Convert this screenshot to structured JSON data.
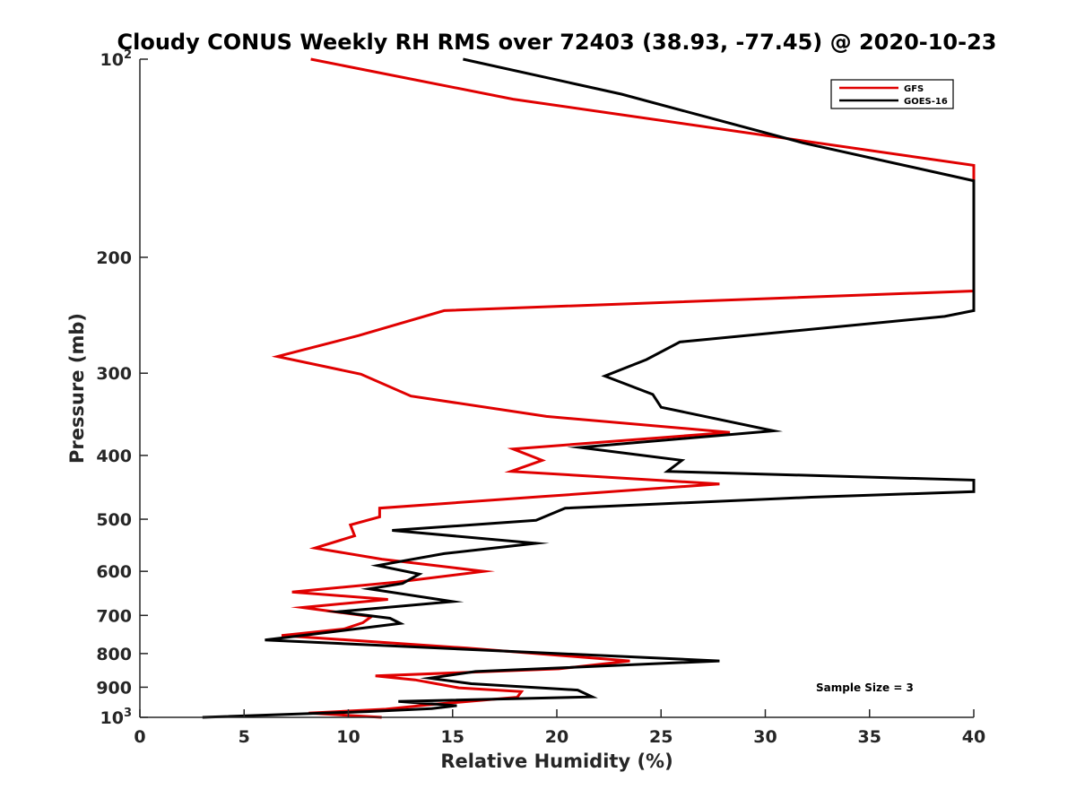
{
  "chart_data": {
    "type": "line",
    "title": "Cloudy CONUS Weekly RH RMS over 72403 (38.93, -77.45) @ 2020-10-23",
    "xlabel": "Relative Humidity (%)",
    "ylabel": "Pressure (mb)",
    "xlim": [
      0,
      40
    ],
    "ylim": [
      100,
      1000
    ],
    "y_scale": "log",
    "y_reversed": true,
    "x_ticks": [
      "0",
      "5",
      "10",
      "15",
      "20",
      "25",
      "30",
      "35",
      "40"
    ],
    "y_ticks": [
      {
        "value": 100,
        "base": "10",
        "exp": "2"
      },
      {
        "value": 200,
        "label": "200"
      },
      {
        "value": 300,
        "label": "300"
      },
      {
        "value": 400,
        "label": "400"
      },
      {
        "value": 500,
        "label": "500"
      },
      {
        "value": 600,
        "label": "600"
      },
      {
        "value": 700,
        "label": "700"
      },
      {
        "value": 800,
        "label": "800"
      },
      {
        "value": 900,
        "label": "900"
      },
      {
        "value": 1000,
        "base": "10",
        "exp": "3"
      }
    ],
    "legend_position": "top-right",
    "annotation": "Sample Size = 3",
    "series": [
      {
        "name": "GFS",
        "color": "#e00000",
        "points": [
          [
            8.2,
            100
          ],
          [
            17.9,
            115
          ],
          [
            40,
            145
          ],
          [
            40,
            225
          ],
          [
            14.6,
            241
          ],
          [
            10.5,
            263
          ],
          [
            6.6,
            283
          ],
          [
            10.6,
            301
          ],
          [
            13.0,
            325
          ],
          [
            19.5,
            349
          ],
          [
            28.3,
            369
          ],
          [
            17.9,
            391
          ],
          [
            19.3,
            407
          ],
          [
            17.8,
            423
          ],
          [
            27.8,
            442
          ],
          [
            19.3,
            462
          ],
          [
            11.5,
            481
          ],
          [
            11.5,
            496
          ],
          [
            10.1,
            510
          ],
          [
            10.3,
            530
          ],
          [
            8.4,
            553
          ],
          [
            11.6,
            575
          ],
          [
            16.5,
            600
          ],
          [
            12.3,
            623
          ],
          [
            7.3,
            645
          ],
          [
            11.9,
            662
          ],
          [
            7.8,
            681
          ],
          [
            11.1,
            703
          ],
          [
            10.7,
            718
          ],
          [
            9.8,
            734
          ],
          [
            6.8,
            751
          ],
          [
            15.7,
            785
          ],
          [
            23.5,
            821
          ],
          [
            20.1,
            844
          ],
          [
            11.3,
            865
          ],
          [
            13.2,
            877
          ],
          [
            15.3,
            902
          ],
          [
            18.3,
            914
          ],
          [
            18.1,
            932
          ],
          [
            14.2,
            955
          ],
          [
            11.8,
            972
          ],
          [
            8.1,
            985
          ],
          [
            11.6,
            1000
          ]
        ]
      },
      {
        "name": "GOES-16",
        "color": "#000000",
        "points": [
          [
            15.5,
            100
          ],
          [
            23.1,
            113
          ],
          [
            31.8,
            134
          ],
          [
            40,
            153
          ],
          [
            40,
            241
          ],
          [
            38.6,
            246
          ],
          [
            25.9,
            269
          ],
          [
            24.3,
            286
          ],
          [
            22.3,
            303
          ],
          [
            24.6,
            323
          ],
          [
            25.0,
            338
          ],
          [
            30.4,
            367
          ],
          [
            21.1,
            389
          ],
          [
            26.0,
            407
          ],
          [
            25.3,
            423
          ],
          [
            40,
            436
          ],
          [
            40,
            454
          ],
          [
            32.2,
            463
          ],
          [
            20.4,
            481
          ],
          [
            19.0,
            502
          ],
          [
            12.1,
            520
          ],
          [
            19.0,
            544
          ],
          [
            14.6,
            564
          ],
          [
            11.4,
            588
          ],
          [
            13.4,
            606
          ],
          [
            12.6,
            626
          ],
          [
            11.0,
            638
          ],
          [
            15.0,
            667
          ],
          [
            9.5,
            691
          ],
          [
            12.0,
            707
          ],
          [
            12.5,
            720
          ],
          [
            6.0,
            763
          ],
          [
            27.8,
            821
          ],
          [
            16.1,
            852
          ],
          [
            13.9,
            872
          ],
          [
            15.9,
            889
          ],
          [
            21.0,
            909
          ],
          [
            21.7,
            931
          ],
          [
            12.4,
            946
          ],
          [
            15.2,
            960
          ],
          [
            14.0,
            970
          ],
          [
            10.9,
            980
          ],
          [
            3.0,
            1000
          ]
        ]
      }
    ]
  }
}
